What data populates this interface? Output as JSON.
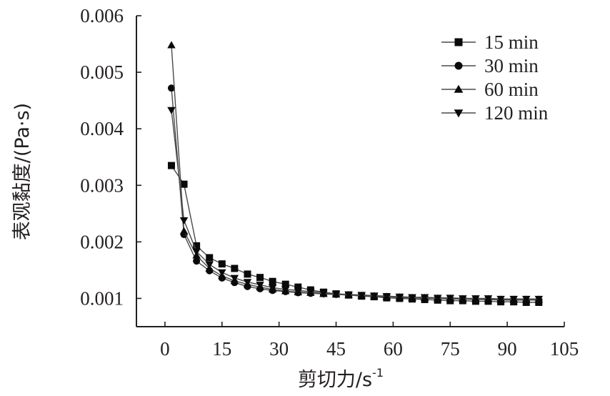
{
  "chart_data": {
    "type": "line",
    "xlabel_main": "剪切力/s",
    "xlabel_sup": "-1",
    "ylabel": "表观黏度/(Pa·s)",
    "xlim": [
      -7.5,
      105
    ],
    "ylim": [
      0.0005,
      0.006
    ],
    "xticks": [
      0,
      15,
      30,
      45,
      60,
      75,
      90,
      105
    ],
    "yticks": [
      0.001,
      0.002,
      0.003,
      0.004,
      0.005,
      0.006
    ],
    "ytick_labels": [
      "0.001",
      "0.002",
      "0.003",
      "0.004",
      "0.005",
      "0.006"
    ],
    "x": [
      1.7,
      5.0,
      8.3,
      11.7,
      15.0,
      18.3,
      21.7,
      25.0,
      28.3,
      31.7,
      35.0,
      38.3,
      41.7,
      45.0,
      48.3,
      51.7,
      55.0,
      58.3,
      61.7,
      65.0,
      68.3,
      71.7,
      75.0,
      78.3,
      81.7,
      85.0,
      88.3,
      91.7,
      95.0,
      98.3
    ],
    "series": [
      {
        "name": "15 min",
        "marker": "square",
        "values": [
          0.00335,
          0.00302,
          0.00193,
          0.00172,
          0.00161,
          0.00153,
          0.00143,
          0.00137,
          0.0013,
          0.00125,
          0.0012,
          0.00115,
          0.00111,
          0.00108,
          0.00106,
          0.00104,
          0.00103,
          0.00101,
          0.001,
          0.00099,
          0.00098,
          0.00097,
          0.00096,
          0.00096,
          0.00095,
          0.00095,
          0.00094,
          0.00094,
          0.00093,
          0.00093
        ]
      },
      {
        "name": "30 min",
        "marker": "circle",
        "values": [
          0.00472,
          0.00213,
          0.00166,
          0.00149,
          0.00136,
          0.00128,
          0.00121,
          0.00117,
          0.00114,
          0.00112,
          0.0011,
          0.00109,
          0.00108,
          0.00107,
          0.00106,
          0.00105,
          0.00104,
          0.00103,
          0.00102,
          0.00101,
          0.001,
          0.001,
          0.00099,
          0.00099,
          0.00098,
          0.00098,
          0.00097,
          0.00097,
          0.00097,
          0.00097
        ]
      },
      {
        "name": "60 min",
        "marker": "triangle-up",
        "values": [
          0.00548,
          0.00219,
          0.00176,
          0.00153,
          0.0014,
          0.00131,
          0.00125,
          0.0012,
          0.00116,
          0.00113,
          0.00111,
          0.0011,
          0.00108,
          0.00107,
          0.00106,
          0.00105,
          0.00104,
          0.00103,
          0.00102,
          0.00101,
          0.00101,
          0.001,
          0.001,
          0.00099,
          0.00099,
          0.00099,
          0.00098,
          0.00098,
          0.00098,
          0.00098
        ]
      },
      {
        "name": "120 min",
        "marker": "triangle-down",
        "values": [
          0.00433,
          0.00238,
          0.00183,
          0.0016,
          0.00146,
          0.00136,
          0.00129,
          0.00124,
          0.00119,
          0.00116,
          0.00114,
          0.00112,
          0.0011,
          0.00108,
          0.00107,
          0.00106,
          0.00105,
          0.00104,
          0.00103,
          0.00102,
          0.00102,
          0.00101,
          0.00101,
          0.001,
          0.001,
          0.001,
          0.00099,
          0.00099,
          0.00099,
          0.00099
        ]
      }
    ],
    "legend_position": "top-right",
    "grid": false,
    "line_color": "#4a4a4a",
    "marker_color": "#0a0a0a",
    "axis_color": "#231f20",
    "text_color": "#231f20"
  }
}
